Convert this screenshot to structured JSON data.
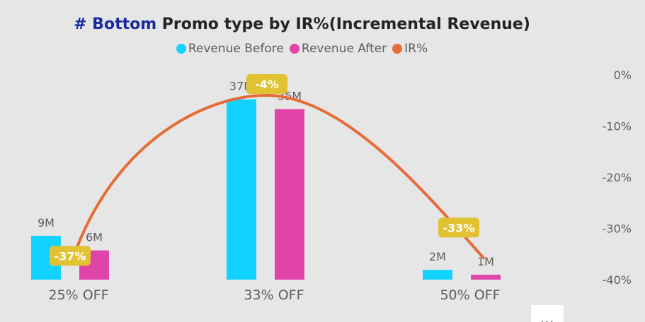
{
  "title": {
    "highlight": "# Bottom",
    "rest": " Promo type by IR%(Incremental Revenue)"
  },
  "more_options": "...",
  "chart_data": {
    "type": "bar",
    "categories": [
      "25% OFF",
      "33% OFF",
      "50% OFF"
    ],
    "series": [
      {
        "name": "Revenue Before",
        "type": "bar",
        "color": "#12d3ff",
        "values": [
          9,
          37,
          2
        ],
        "labels": [
          "9M",
          "37M",
          "2M"
        ]
      },
      {
        "name": "Revenue After",
        "type": "bar",
        "color": "#e044a8",
        "values": [
          6,
          35,
          1
        ],
        "labels": [
          "6M",
          "35M",
          "1M"
        ]
      },
      {
        "name": "IR%",
        "type": "line",
        "color": "#e66c37",
        "axis": "right",
        "values": [
          -37,
          -4,
          -33
        ],
        "labels": [
          "-37%",
          "-4%",
          "-33%"
        ]
      }
    ],
    "right_axis": {
      "ticks": [
        "0%",
        "-10%",
        "-20%",
        "-30%",
        "-40%"
      ],
      "range": [
        -40,
        0
      ]
    },
    "legend_position": "top-center",
    "label_color": "#e1c233"
  }
}
